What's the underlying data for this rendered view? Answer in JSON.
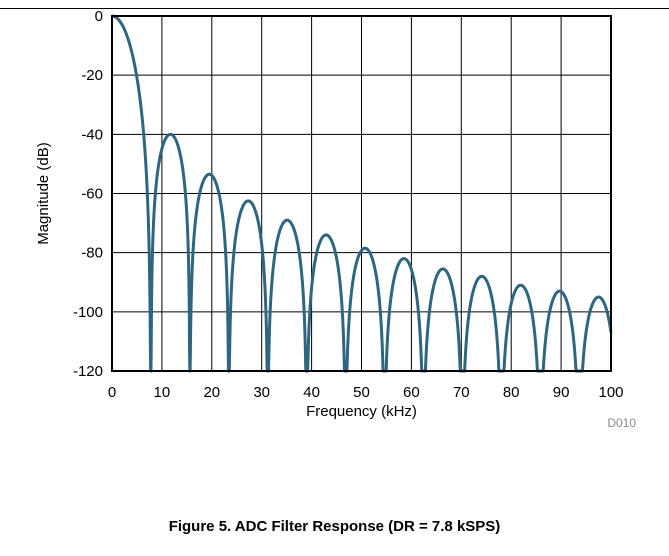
{
  "figure": {
    "caption": "Figure 5. ADC Filter Response (DR = 7.8 kSPS)",
    "code": "D010"
  },
  "chart_data": {
    "type": "line",
    "title": "",
    "xlabel": "Frequency (kHz)",
    "ylabel": "Magnitude (dB)",
    "xlim": [
      0,
      100
    ],
    "ylim": [
      -120,
      0
    ],
    "x_ticks": [
      "0",
      "10",
      "20",
      "30",
      "40",
      "50",
      "60",
      "70",
      "80",
      "90",
      "100"
    ],
    "y_ticks": [
      "0",
      "-20",
      "-40",
      "-60",
      "-80",
      "-100",
      "-120"
    ],
    "grid": true,
    "line_color": "#2e6581",
    "series": [
      {
        "description_points_x": [
          0,
          2,
          4,
          6,
          7.8,
          11.7,
          15.6,
          19.5,
          23.4,
          27.3,
          31.2,
          35.1,
          39.0,
          42.9,
          46.8,
          50.7,
          54.6,
          58.5,
          62.4,
          66.3,
          70.2,
          74.1,
          78.0,
          81.9,
          85.8,
          89.7,
          93.6,
          97.5,
          100
        ],
        "y": [
          0,
          -2.5,
          -10,
          -25,
          -120,
          -40,
          -120,
          -53.5,
          -120,
          -62.5,
          -120,
          -69,
          -120,
          -74,
          -120,
          -78.5,
          -120,
          -82,
          -120,
          -85.5,
          -120,
          -88,
          -120,
          -91,
          -120,
          -93,
          -120,
          -95,
          -106
        ]
      }
    ]
  }
}
